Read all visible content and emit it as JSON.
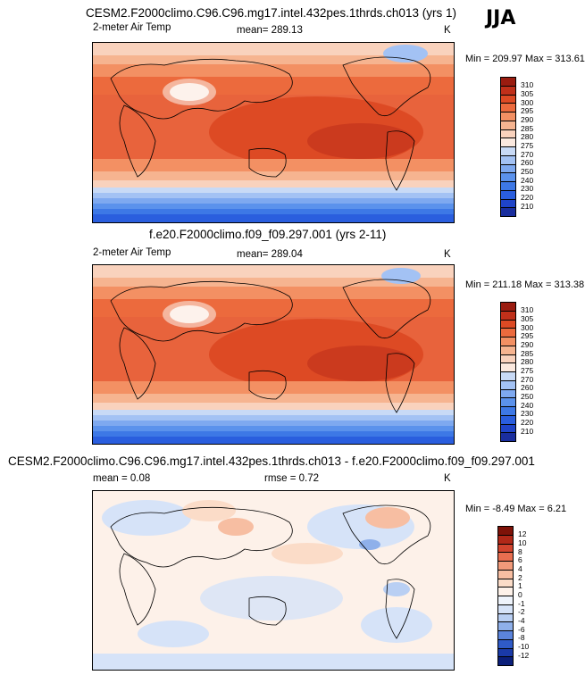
{
  "season": "JJA",
  "panels": [
    {
      "title": "CESM2.F2000climo.C96.C96.mg17.intel.432pes.1thrds.ch013 (yrs 1)",
      "left_label": "2-meter Air Temp",
      "center_label": "mean= 289.13",
      "right_label": "K",
      "minmax": "Min = 209.97 Max = 313.61",
      "colorbar": {
        "labels": [
          "210",
          "220",
          "230",
          "240",
          "250",
          "260",
          "270",
          "275",
          "280",
          "285",
          "290",
          "295",
          "300",
          "305",
          "310"
        ],
        "colors": [
          "#1a2e9e",
          "#1f44c8",
          "#2a5ede",
          "#3d78e6",
          "#5b92ec",
          "#7ea9f0",
          "#a3c2f4",
          "#c8daf6",
          "#fbe9df",
          "#f9d2bd",
          "#f6b490",
          "#f39063",
          "#ec6a3d",
          "#dd4a24",
          "#c0301a",
          "#9a1c10"
        ]
      }
    },
    {
      "title": "f.e20.F2000climo.f09_f09.297.001 (yrs 2-11)",
      "left_label": "2-meter Air Temp",
      "center_label": "mean= 289.04",
      "right_label": "K",
      "minmax": "Min = 211.18 Max = 313.38",
      "colorbar": {
        "labels": [
          "210",
          "220",
          "230",
          "240",
          "250",
          "260",
          "270",
          "275",
          "280",
          "285",
          "290",
          "295",
          "300",
          "305",
          "310"
        ],
        "colors": [
          "#1a2e9e",
          "#1f44c8",
          "#2a5ede",
          "#3d78e6",
          "#5b92ec",
          "#7ea9f0",
          "#a3c2f4",
          "#c8daf6",
          "#fbe9df",
          "#f9d2bd",
          "#f6b490",
          "#f39063",
          "#ec6a3d",
          "#dd4a24",
          "#c0301a",
          "#9a1c10"
        ]
      }
    },
    {
      "title": "CESM2.F2000climo.C96.C96.mg17.intel.432pes.1thrds.ch013 - f.e20.F2000climo.f09_f09.297.001",
      "left_label": "mean =   0.08",
      "center_label": "rmse =   0.72",
      "right_label": "K",
      "minmax": "Min =  -8.49 Max =   6.21",
      "colorbar": {
        "labels": [
          "-12",
          "-10",
          "-8",
          "-6",
          "-4",
          "-2",
          "-1",
          "0",
          "1",
          "2",
          "4",
          "6",
          "8",
          "10",
          "12"
        ],
        "colors": [
          "#0b1f7a",
          "#1a3aa8",
          "#2f5bc8",
          "#5b84dc",
          "#8fb0ea",
          "#b9cff3",
          "#d6e3f8",
          "#eef3fb",
          "#fdf1e9",
          "#fbdcc8",
          "#f7bea2",
          "#f29a7a",
          "#e86e50",
          "#d2442e",
          "#b12818",
          "#7e1208"
        ]
      }
    }
  ]
}
